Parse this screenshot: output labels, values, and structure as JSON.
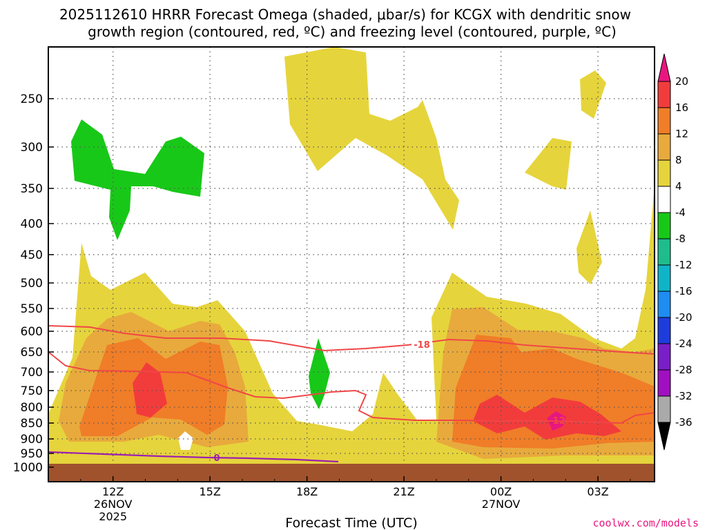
{
  "chart_data": {
    "type": "heatmap",
    "title_line1": "2025112610 HRRR Forecast Omega (shaded, μbar/s) for KCGX with dendritic snow",
    "title_line2": "growth region (contoured, red, ºC) and freezing level (contoured, purple, ºC)",
    "xlabel": "Forecast Time (UTC)",
    "x_ticks": [
      {
        "label": "12Z",
        "sub1": "26NOV",
        "sub2": "2025",
        "hour": 12
      },
      {
        "label": "15Z",
        "sub1": "",
        "sub2": "",
        "hour": 15
      },
      {
        "label": "18Z",
        "sub1": "",
        "sub2": "",
        "hour": 18
      },
      {
        "label": "21Z",
        "sub1": "",
        "sub2": "",
        "hour": 21
      },
      {
        "label": "00Z",
        "sub1": "27NOV",
        "sub2": "",
        "hour": 24
      },
      {
        "label": "03Z",
        "sub1": "",
        "sub2": "",
        "hour": 27
      }
    ],
    "x_range_hours": [
      10,
      28.75
    ],
    "y_ticks": [
      "250",
      "300",
      "350",
      "400",
      "450",
      "500",
      "550",
      "600",
      "650",
      "700",
      "750",
      "800",
      "850",
      "900",
      "950",
      "1000"
    ],
    "y_range_hpa": [
      200,
      1020
    ],
    "colorbar": {
      "labels": [
        "20",
        "16",
        "12",
        "8",
        "4",
        "-4",
        "-8",
        "-12",
        "-16",
        "-20",
        "-24",
        "-28",
        "-32",
        "-36"
      ],
      "colors": [
        "#e8177f",
        "#f23c3c",
        "#f07d28",
        "#e8aa3c",
        "#e6d43c",
        "#ffffff",
        "#18c818",
        "#1fbd8c",
        "#10b4c8",
        "#1e8cf0",
        "#1e3cdc",
        "#7a1ec8",
        "#a010c0",
        "#aaaaaa",
        "#000000"
      ]
    },
    "contour_labels": {
      "dgz_top": "-18",
      "dgz_inner": "-12",
      "freezing": "0"
    },
    "colors": {
      "dgz_contour": "#f04646",
      "freezing_contour": "#9b1fb0",
      "ground": "#a0522d",
      "grid": "#555555"
    },
    "credit": "coolwx.com/models"
  }
}
